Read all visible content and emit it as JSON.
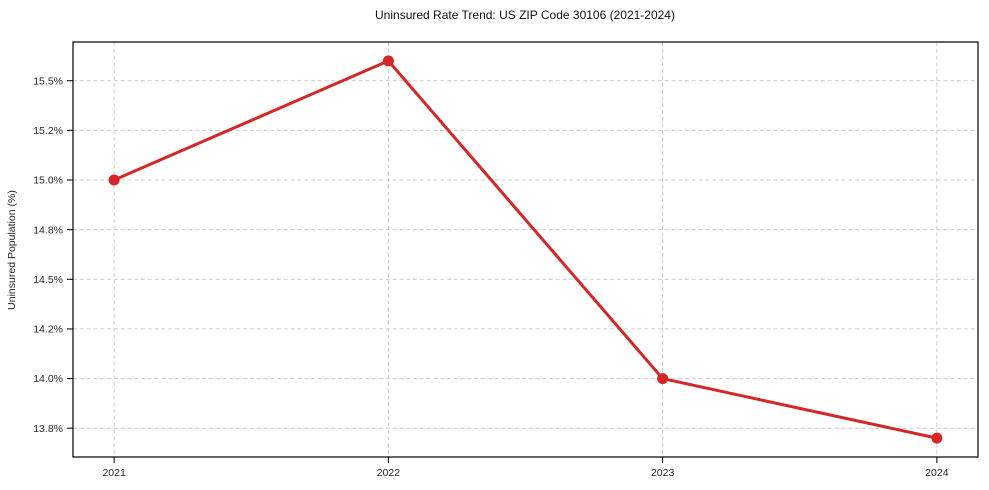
{
  "chart_data": {
    "type": "line",
    "title": "Uninsured Rate Trend: US ZIP Code 30106 (2021-2024)",
    "xlabel": "",
    "ylabel": "Uninsured Population (%)",
    "x": [
      2021,
      2022,
      2023,
      2024
    ],
    "series": [
      {
        "values": [
          15.0,
          15.6,
          14.0,
          13.7
        ]
      }
    ],
    "xlim": [
      2020.85,
      2024.15
    ],
    "ylim": [
      13.605,
      15.695
    ],
    "xticks": [
      {
        "value": 2021,
        "label": "2021"
      },
      {
        "value": 2022,
        "label": "2022"
      },
      {
        "value": 2023,
        "label": "2023"
      },
      {
        "value": 2024,
        "label": "2024"
      }
    ],
    "yticks": [
      {
        "value": 13.75,
        "label": "13.8%"
      },
      {
        "value": 14.0,
        "label": "14.0%"
      },
      {
        "value": 14.25,
        "label": "14.2%"
      },
      {
        "value": 14.5,
        "label": "14.5%"
      },
      {
        "value": 14.75,
        "label": "14.8%"
      },
      {
        "value": 15.0,
        "label": "15.0%"
      },
      {
        "value": 15.25,
        "label": "15.2%"
      },
      {
        "value": 15.5,
        "label": "15.5%"
      }
    ],
    "grid": true,
    "legend_position": "none",
    "colors": {
      "line": "#d62728",
      "marker": "#d62728",
      "grid": "#cccccc",
      "spine": "#000000",
      "background": "#ffffff"
    },
    "marker_style": "circle"
  }
}
